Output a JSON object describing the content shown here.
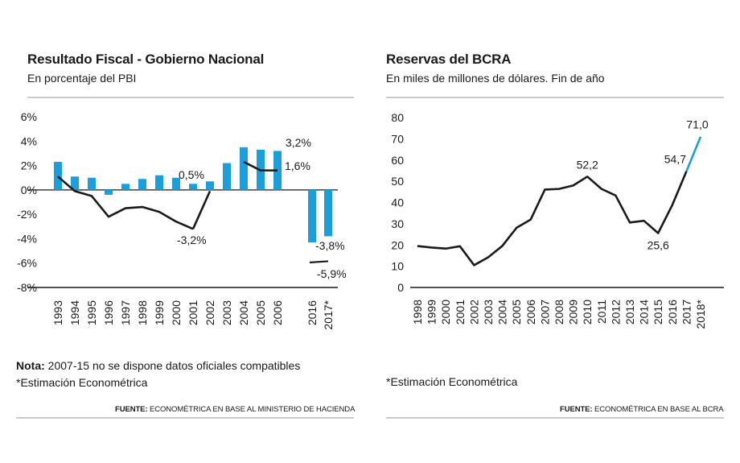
{
  "colors": {
    "bar": "#1a9fdc",
    "line": "#1a1a1a",
    "highlight": "#1a9fdc",
    "rule": "#999999"
  },
  "left": {
    "title": "Resultado Fiscal - Gobierno Nacional",
    "subtitle": "En porcentaje del PBI",
    "note_bold": "Nota:",
    "note_text": " 2007-15 no se dispone datos oficiales compatibles",
    "note2": "*Estimación Econométrica",
    "source_bold": "FUENTE:",
    "source_text": " ECONOMÉTRICA EN BASE AL MINISTERIO DE HACIENDA"
  },
  "right": {
    "title": "Reservas del BCRA",
    "subtitle": "En miles de millones de dólares. Fin de año",
    "note": "*Estimación Econométrica",
    "source_bold": "FUENTE:",
    "source_text": " ECONOMÉTRICA EN BASE AL BCRA"
  },
  "chart_data": [
    {
      "type": "bar",
      "title": "Resultado Fiscal - Gobierno Nacional",
      "subtitle": "En porcentaje del PBI",
      "ylim": [
        -8,
        6
      ],
      "yticks": [
        6,
        4,
        2,
        0,
        -2,
        -4,
        -6,
        -8
      ],
      "ytick_labels": [
        "6%",
        "4%",
        "2%",
        "0%",
        "-2%",
        "-4%",
        "-6%",
        "-8%"
      ],
      "categories": [
        "1993",
        "1994",
        "1995",
        "1996",
        "1997",
        "1998",
        "1999",
        "2000",
        "2001",
        "2002",
        "2003",
        "2004",
        "2005",
        "2006",
        "2016",
        "2017*"
      ],
      "series": [
        {
          "kind": "bar",
          "values": [
            2.3,
            1.1,
            1.0,
            -0.4,
            0.5,
            0.9,
            1.2,
            1.0,
            0.5,
            0.7,
            2.2,
            3.5,
            3.3,
            3.2,
            -4.3,
            -3.8
          ]
        },
        {
          "kind": "line",
          "values": [
            1.1,
            -0.1,
            -0.5,
            -2.2,
            -1.5,
            -1.4,
            -1.8,
            -2.6,
            -3.2,
            null,
            null,
            2.3,
            1.6,
            1.6,
            null,
            null
          ]
        },
        {
          "kind": "line",
          "values": [
            null,
            null,
            null,
            null,
            null,
            null,
            null,
            null,
            null,
            null,
            null,
            null,
            null,
            null,
            -5.9,
            -5.9
          ]
        }
      ],
      "annotations": [
        "0,5%",
        "3,2%",
        "1,6%",
        "-3,2%",
        "-3,8%",
        "-5,9%"
      ],
      "grid": false
    },
    {
      "type": "line",
      "title": "Reservas del BCRA",
      "subtitle": "En miles de millones de dólares. Fin de año",
      "ylim": [
        0,
        80
      ],
      "yticks": [
        80,
        70,
        60,
        50,
        40,
        30,
        20,
        10,
        0
      ],
      "categories": [
        "1998",
        "1999",
        "2000",
        "2001",
        "2002",
        "2003",
        "2004",
        "2005",
        "2006",
        "2007",
        "2008",
        "2009",
        "2010",
        "2011",
        "2012",
        "2013",
        "2014",
        "2015",
        "2016",
        "2017",
        "2018*"
      ],
      "series": [
        {
          "kind": "line",
          "values": [
            19.5,
            18.8,
            18.3,
            19.4,
            10.5,
            14.2,
            19.6,
            28.1,
            32.0,
            46.1,
            46.4,
            48.0,
            52.2,
            46.4,
            43.3,
            30.6,
            31.4,
            25.6,
            38.8,
            54.7,
            71.0
          ]
        }
      ],
      "annotations": [
        "52,2",
        "54,7",
        "25,6",
        "71,0"
      ],
      "grid": false
    }
  ]
}
